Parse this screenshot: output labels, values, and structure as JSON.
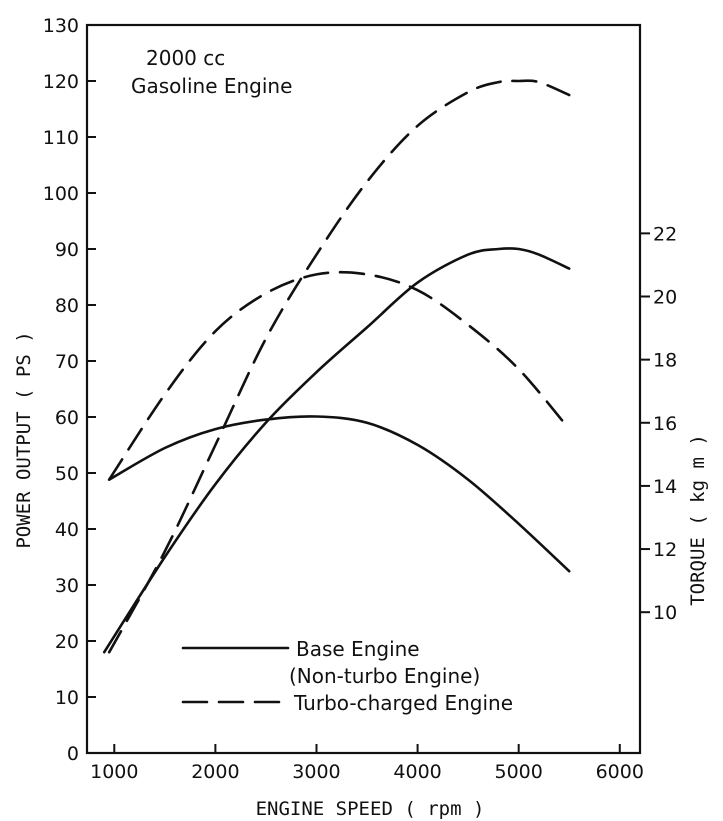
{
  "chart_data": {
    "type": "line",
    "annotation_lines": [
      "2000 cc",
      "Gasoline Engine"
    ],
    "xlabel": "ENGINE SPEED    ( rpm )",
    "ylabel": "POWER OUTPUT    ( PS )",
    "y2label": "TORQUE    ( kg m )",
    "xlim": [
      730,
      6200
    ],
    "ylim": [
      0,
      130
    ],
    "y2lim": [
      5.54,
      28.6
    ],
    "x_ticks": [
      1000,
      2000,
      3000,
      4000,
      5000,
      6000
    ],
    "y_ticks": [
      0,
      10,
      20,
      30,
      40,
      50,
      60,
      70,
      80,
      90,
      100,
      110,
      120,
      130
    ],
    "y2_ticks": [
      10,
      12,
      14,
      16,
      18,
      20,
      22
    ],
    "x_tick_labels": [
      "1000",
      "2000",
      "3000",
      "4000",
      "5000",
      "6000"
    ],
    "y_tick_labels": [
      "0",
      "10",
      "20",
      "30",
      "40",
      "50",
      "60",
      "70",
      "80",
      "90",
      "100",
      "110",
      "120",
      "130"
    ],
    "y2_tick_labels": [
      "10",
      "12",
      "14",
      "16",
      "18",
      "20",
      "22"
    ],
    "series": [
      {
        "axis": "left",
        "style": "solid",
        "x": [
          900,
          1500,
          2000,
          2500,
          3000,
          3500,
          4000,
          4500,
          4800,
          5000,
          5200,
          5500
        ],
        "y": [
          18,
          35,
          48,
          59,
          68,
          76,
          84,
          89,
          90,
          90,
          89,
          86.5
        ]
      },
      {
        "axis": "left",
        "style": "dashed",
        "x": [
          950,
          1500,
          2000,
          2500,
          3000,
          3500,
          4000,
          4500,
          4800,
          5000,
          5200,
          5500
        ],
        "y": [
          18,
          36,
          55,
          74,
          89,
          102,
          112,
          118,
          119.8,
          120,
          119.8,
          117.5
        ]
      },
      {
        "axis": "right",
        "style": "solid",
        "x": [
          950,
          1500,
          2000,
          2500,
          3000,
          3500,
          4000,
          4500,
          5000,
          5500
        ],
        "y": [
          14.2,
          15.2,
          15.8,
          16.1,
          16.2,
          16.0,
          15.3,
          14.2,
          12.8,
          11.3
        ]
      },
      {
        "axis": "right",
        "style": "dashed",
        "x": [
          950,
          1500,
          2000,
          2500,
          3000,
          3500,
          4000,
          4500,
          5000,
          5500
        ],
        "y": [
          14.2,
          16.9,
          18.9,
          20.1,
          20.7,
          20.7,
          20.2,
          19.1,
          17.7,
          15.8
        ]
      }
    ],
    "legend": [
      {
        "style": "solid",
        "label": "Base Engine"
      },
      {
        "style": "solid-sub",
        "label": "(Non-turbo Engine)"
      },
      {
        "style": "dashed",
        "label": "Turbo-charged Engine"
      }
    ],
    "legend_position": "bottom-center",
    "grid": false,
    "colors": {
      "ink": "#111111",
      "background": "#ffffff"
    }
  }
}
